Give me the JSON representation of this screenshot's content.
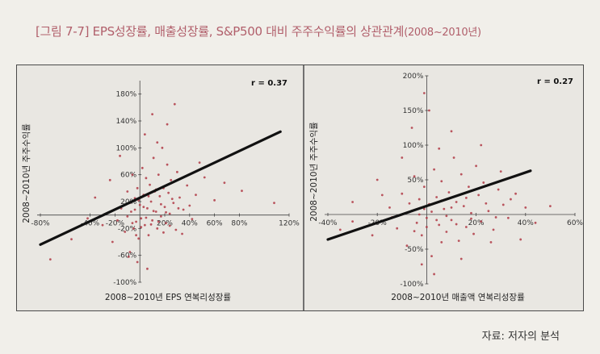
{
  "figure": {
    "label": "[그림 7-7]",
    "title": "EPS성장률, 매출성장률, S&P500 대비 주주수익률의 상관관계",
    "period": "(2008~2010년)"
  },
  "source": "자료: 저자의 분석",
  "colors": {
    "title": "#b15f6b",
    "dots": "#b03a45",
    "line": "#111111",
    "axis": "#444444"
  },
  "chart_data": [
    {
      "type": "scatter",
      "annotation": "r = 0.37",
      "xlabel": "2008~2010년 EPS 연복리성장률",
      "ylabel": "2008~2010년 주주수익률",
      "xlim": [
        -80,
        120
      ],
      "ylim": [
        -100,
        200
      ],
      "x_ticks": [
        -80,
        -40,
        -20,
        20,
        40,
        60,
        80,
        120
      ],
      "y_ticks": [
        -100,
        -60,
        -20,
        20,
        60,
        100,
        140,
        180
      ],
      "x_tick_labels": [
        "-80%",
        "-40%",
        "-20%",
        "20%",
        "40%",
        "60%",
        "80%",
        "120%"
      ],
      "y_tick_labels": [
        "-100%",
        "-60%",
        "-20%",
        "20%",
        "60%",
        "100%",
        "140%",
        "180%"
      ],
      "trend_line": {
        "x": [
          -80,
          113
        ],
        "y": [
          -44,
          124
        ]
      },
      "points": [
        [
          -42,
          -5
        ],
        [
          -30,
          -15
        ],
        [
          -22,
          -40
        ],
        [
          -18,
          -8
        ],
        [
          -15,
          10
        ],
        [
          -12,
          -25
        ],
        [
          -10,
          35
        ],
        [
          -8,
          -55
        ],
        [
          -7,
          5
        ],
        [
          -6,
          60
        ],
        [
          -5,
          -20
        ],
        [
          -4,
          25
        ],
        [
          -3,
          -10
        ],
        [
          -2,
          40
        ],
        [
          -1,
          -35
        ],
        [
          0,
          15
        ],
        [
          1,
          -5
        ],
        [
          2,
          70
        ],
        [
          3,
          30
        ],
        [
          4,
          -15
        ],
        [
          5,
          55
        ],
        [
          6,
          10
        ],
        [
          7,
          -30
        ],
        [
          8,
          45
        ],
        [
          9,
          20
        ],
        [
          10,
          -8
        ],
        [
          11,
          85
        ],
        [
          12,
          35
        ],
        [
          13,
          5
        ],
        [
          14,
          -20
        ],
        [
          15,
          60
        ],
        [
          16,
          28
        ],
        [
          17,
          -2
        ],
        [
          18,
          100
        ],
        [
          19,
          40
        ],
        [
          20,
          12
        ],
        [
          21,
          -12
        ],
        [
          22,
          75
        ],
        [
          23,
          33
        ],
        [
          24,
          2
        ],
        [
          25,
          52
        ],
        [
          27,
          18
        ],
        [
          29,
          -22
        ],
        [
          30,
          64
        ],
        [
          32,
          26
        ],
        [
          35,
          8
        ],
        [
          38,
          44
        ],
        [
          42,
          -6
        ],
        [
          45,
          30
        ],
        [
          52,
          56
        ],
        [
          60,
          22
        ],
        [
          68,
          48
        ],
        [
          -2,
          -70
        ],
        [
          -9,
          -62
        ],
        [
          6,
          -80
        ],
        [
          10,
          150
        ],
        [
          4,
          120
        ],
        [
          22,
          135
        ],
        [
          28,
          165
        ],
        [
          14,
          108
        ],
        [
          -16,
          88
        ],
        [
          -24,
          52
        ],
        [
          -36,
          26
        ],
        [
          -55,
          -36
        ],
        [
          -72,
          -66
        ],
        [
          82,
          36
        ],
        [
          108,
          18
        ],
        [
          48,
          78
        ],
        [
          -10,
          -2
        ],
        [
          -8,
          18
        ],
        [
          -6,
          -12
        ],
        [
          -4,
          8
        ],
        [
          -3,
          -30
        ],
        [
          -1,
          22
        ],
        [
          1,
          -18
        ],
        [
          3,
          12
        ],
        [
          5,
          -4
        ],
        [
          7,
          28
        ],
        [
          9,
          -14
        ],
        [
          11,
          6
        ],
        [
          13,
          38
        ],
        [
          15,
          -10
        ],
        [
          17,
          16
        ],
        [
          19,
          -26
        ],
        [
          21,
          4
        ],
        [
          24,
          -16
        ],
        [
          26,
          24
        ],
        [
          31,
          10
        ],
        [
          34,
          -28
        ],
        [
          40,
          14
        ]
      ]
    },
    {
      "type": "scatter",
      "annotation": "r = 0.27",
      "xlabel": "2008~2010년 매출액 연복리성장률",
      "ylabel": "2008~2010년 주주수익률",
      "xlim": [
        -40,
        60
      ],
      "ylim": [
        -100,
        200
      ],
      "x_ticks": [
        -40,
        -20,
        20,
        40,
        60
      ],
      "y_ticks": [
        -100,
        -50,
        50,
        100,
        150,
        200
      ],
      "x_tick_labels": [
        "-40%",
        "-20%",
        "20%",
        "40%",
        "60%"
      ],
      "y_tick_labels": [
        "-100%",
        "-50%",
        "50%",
        "100%",
        "150%",
        "200%"
      ],
      "trend_line": {
        "x": [
          -40,
          42
        ],
        "y": [
          -36,
          63
        ]
      },
      "points": [
        [
          -30,
          -10
        ],
        [
          -22,
          -30
        ],
        [
          -15,
          10
        ],
        [
          -12,
          -20
        ],
        [
          -10,
          30
        ],
        [
          -8,
          -45
        ],
        [
          -6,
          5
        ],
        [
          -5,
          55
        ],
        [
          -4,
          -12
        ],
        [
          -3,
          22
        ],
        [
          -2,
          -30
        ],
        [
          -1,
          40
        ],
        [
          0,
          -5
        ],
        [
          1,
          15
        ],
        [
          2,
          -60
        ],
        [
          3,
          65
        ],
        [
          4,
          25
        ],
        [
          5,
          -15
        ],
        [
          6,
          48
        ],
        [
          7,
          8
        ],
        [
          8,
          -25
        ],
        [
          9,
          32
        ],
        [
          10,
          -8
        ],
        [
          11,
          82
        ],
        [
          12,
          18
        ],
        [
          13,
          -38
        ],
        [
          14,
          58
        ],
        [
          15,
          12
        ],
        [
          16,
          -18
        ],
        [
          17,
          40
        ],
        [
          18,
          2
        ],
        [
          19,
          -28
        ],
        [
          20,
          70
        ],
        [
          21,
          28
        ],
        [
          22,
          -10
        ],
        [
          23,
          46
        ],
        [
          25,
          5
        ],
        [
          27,
          -22
        ],
        [
          29,
          36
        ],
        [
          31,
          14
        ],
        [
          33,
          -5
        ],
        [
          36,
          30
        ],
        [
          40,
          10
        ],
        [
          44,
          -12
        ],
        [
          -1,
          175
        ],
        [
          1,
          150
        ],
        [
          -6,
          125
        ],
        [
          10,
          120
        ],
        [
          22,
          100
        ],
        [
          30,
          62
        ],
        [
          5,
          95
        ],
        [
          -10,
          82
        ],
        [
          -20,
          50
        ],
        [
          -30,
          18
        ],
        [
          -2,
          -72
        ],
        [
          3,
          -86
        ],
        [
          14,
          -64
        ],
        [
          50,
          12
        ],
        [
          -35,
          -22
        ],
        [
          -3,
          0
        ],
        [
          -1,
          8
        ],
        [
          0,
          -18
        ],
        [
          2,
          4
        ],
        [
          4,
          -8
        ],
        [
          6,
          20
        ],
        [
          8,
          -2
        ],
        [
          10,
          10
        ],
        [
          12,
          -14
        ],
        [
          -5,
          -24
        ],
        [
          -7,
          16
        ],
        [
          16,
          24
        ],
        [
          18,
          -6
        ],
        [
          24,
          16
        ],
        [
          28,
          -4
        ],
        [
          34,
          22
        ],
        [
          -14,
          -4
        ],
        [
          -18,
          28
        ],
        [
          6,
          -40
        ],
        [
          26,
          -40
        ],
        [
          38,
          -36
        ]
      ]
    }
  ]
}
